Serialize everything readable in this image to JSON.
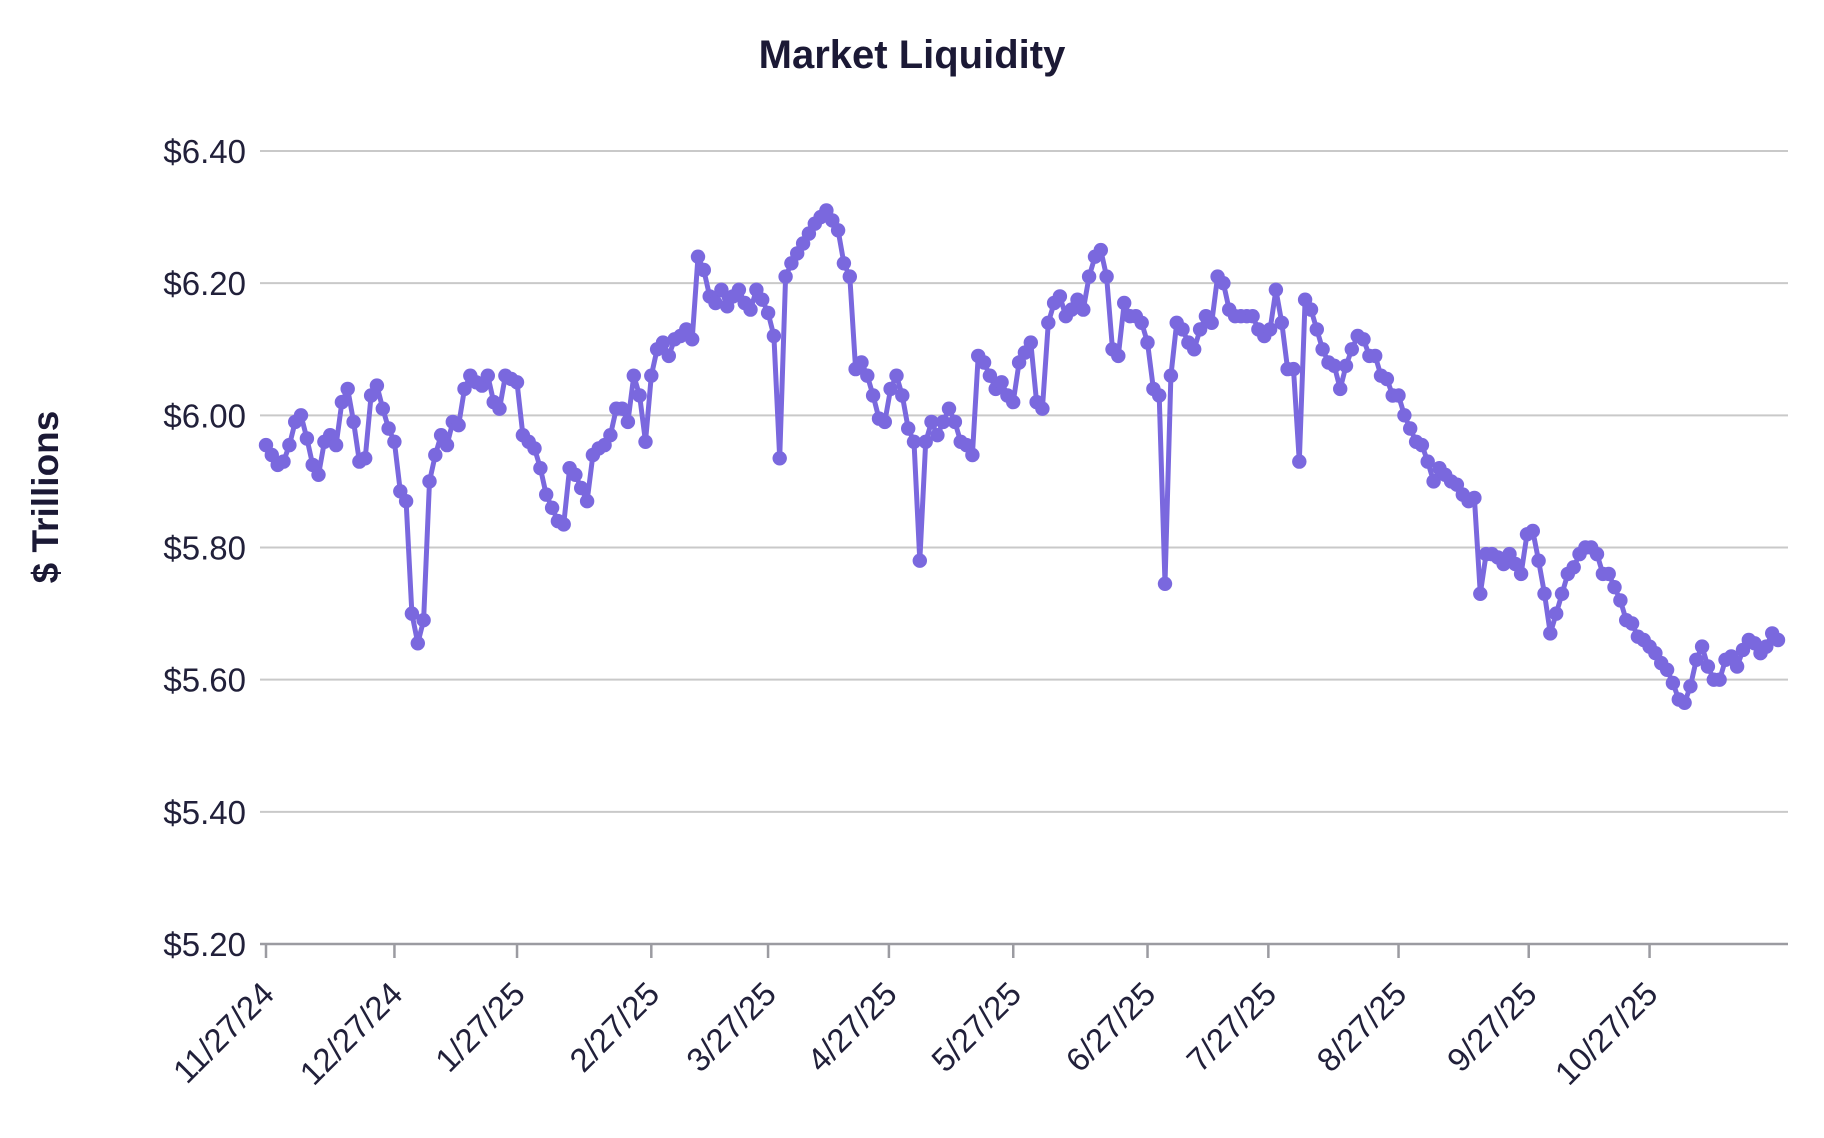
{
  "chart_data": {
    "type": "line",
    "title": "Market Liquidity",
    "xlabel": "",
    "ylabel": "$ Trillions",
    "ylim": [
      5.2,
      6.4
    ],
    "grid": "horizontal-only",
    "legend": "none",
    "colors": {
      "line": "#7a68de",
      "marker": "#7a68de",
      "gridline": "#c9c9c9",
      "axis": "#9b9ba1",
      "text": "#1b1935"
    },
    "y_ticks": {
      "values": [
        6.4,
        6.2,
        6.0,
        5.8,
        5.6,
        5.4,
        5.2
      ],
      "labels": [
        "$6.40",
        "$6.20",
        "$6.00",
        "$5.80",
        "$5.60",
        "$5.40",
        "$5.20"
      ]
    },
    "x_ticks": {
      "labels": [
        "11/27/24",
        "12/27/24",
        "1/27/25",
        "2/27/25",
        "3/27/25",
        "4/27/25",
        "5/27/25",
        "6/27/25",
        "7/27/25",
        "8/27/25",
        "9/27/25",
        "10/27/25"
      ],
      "point_indices": [
        0,
        22,
        43,
        66,
        86,
        106.7,
        128,
        151,
        171.7,
        194,
        216.3,
        237
      ]
    },
    "series_name": "Market Liquidity ($ Trillions), daily",
    "n_points": 260,
    "values": [
      5.955,
      5.94,
      5.925,
      5.93,
      5.955,
      5.99,
      6.0,
      5.965,
      5.925,
      5.91,
      5.96,
      5.97,
      5.955,
      6.02,
      6.04,
      5.99,
      5.93,
      5.935,
      6.03,
      6.045,
      6.01,
      5.98,
      5.96,
      5.885,
      5.87,
      5.7,
      5.655,
      5.69,
      5.9,
      5.94,
      5.97,
      5.955,
      5.99,
      5.985,
      6.04,
      6.06,
      6.05,
      6.045,
      6.06,
      6.02,
      6.01,
      6.06,
      6.055,
      6.05,
      5.97,
      5.96,
      5.95,
      5.92,
      5.88,
      5.86,
      5.84,
      5.835,
      5.92,
      5.91,
      5.89,
      5.87,
      5.94,
      5.95,
      5.955,
      5.97,
      6.01,
      6.01,
      5.99,
      6.06,
      6.03,
      5.96,
      6.06,
      6.1,
      6.11,
      6.09,
      6.115,
      6.12,
      6.13,
      6.115,
      6.24,
      6.22,
      6.18,
      6.17,
      6.19,
      6.165,
      6.18,
      6.19,
      6.17,
      6.16,
      6.19,
      6.175,
      6.155,
      6.12,
      5.935,
      6.21,
      6.23,
      6.245,
      6.26,
      6.275,
      6.29,
      6.3,
      6.31,
      6.295,
      6.28,
      6.23,
      6.21,
      6.07,
      6.08,
      6.06,
      6.03,
      5.995,
      5.99,
      6.04,
      6.06,
      6.03,
      5.98,
      5.96,
      5.78,
      5.96,
      5.99,
      5.97,
      5.99,
      6.01,
      5.99,
      5.96,
      5.955,
      5.94,
      6.09,
      6.08,
      6.06,
      6.04,
      6.05,
      6.03,
      6.02,
      6.08,
      6.095,
      6.11,
      6.02,
      6.01,
      6.14,
      6.17,
      6.18,
      6.15,
      6.16,
      6.175,
      6.16,
      6.21,
      6.24,
      6.25,
      6.21,
      6.1,
      6.09,
      6.17,
      6.15,
      6.15,
      6.14,
      6.11,
      6.04,
      6.03,
      5.745,
      6.06,
      6.14,
      6.13,
      6.11,
      6.1,
      6.13,
      6.15,
      6.14,
      6.21,
      6.2,
      6.16,
      6.15,
      6.15,
      6.15,
      6.15,
      6.13,
      6.12,
      6.13,
      6.19,
      6.14,
      6.07,
      6.07,
      5.93,
      6.175,
      6.16,
      6.13,
      6.1,
      6.08,
      6.075,
      6.04,
      6.075,
      6.1,
      6.12,
      6.115,
      6.09,
      6.09,
      6.06,
      6.055,
      6.03,
      6.03,
      6.0,
      5.98,
      5.96,
      5.955,
      5.93,
      5.9,
      5.92,
      5.91,
      5.9,
      5.895,
      5.88,
      5.87,
      5.875,
      5.73,
      5.79,
      5.79,
      5.785,
      5.775,
      5.79,
      5.775,
      5.76,
      5.82,
      5.825,
      5.78,
      5.73,
      5.67,
      5.7,
      5.73,
      5.76,
      5.77,
      5.79,
      5.8,
      5.8,
      5.79,
      5.76,
      5.76,
      5.74,
      5.72,
      5.69,
      5.685,
      5.665,
      5.66,
      5.65,
      5.64,
      5.625,
      5.615,
      5.595,
      5.57,
      5.565,
      5.59,
      5.63,
      5.65,
      5.62,
      5.6,
      5.6,
      5.63,
      5.635,
      5.62,
      5.645,
      5.66,
      5.655,
      5.64,
      5.65,
      5.67,
      5.66
    ]
  }
}
